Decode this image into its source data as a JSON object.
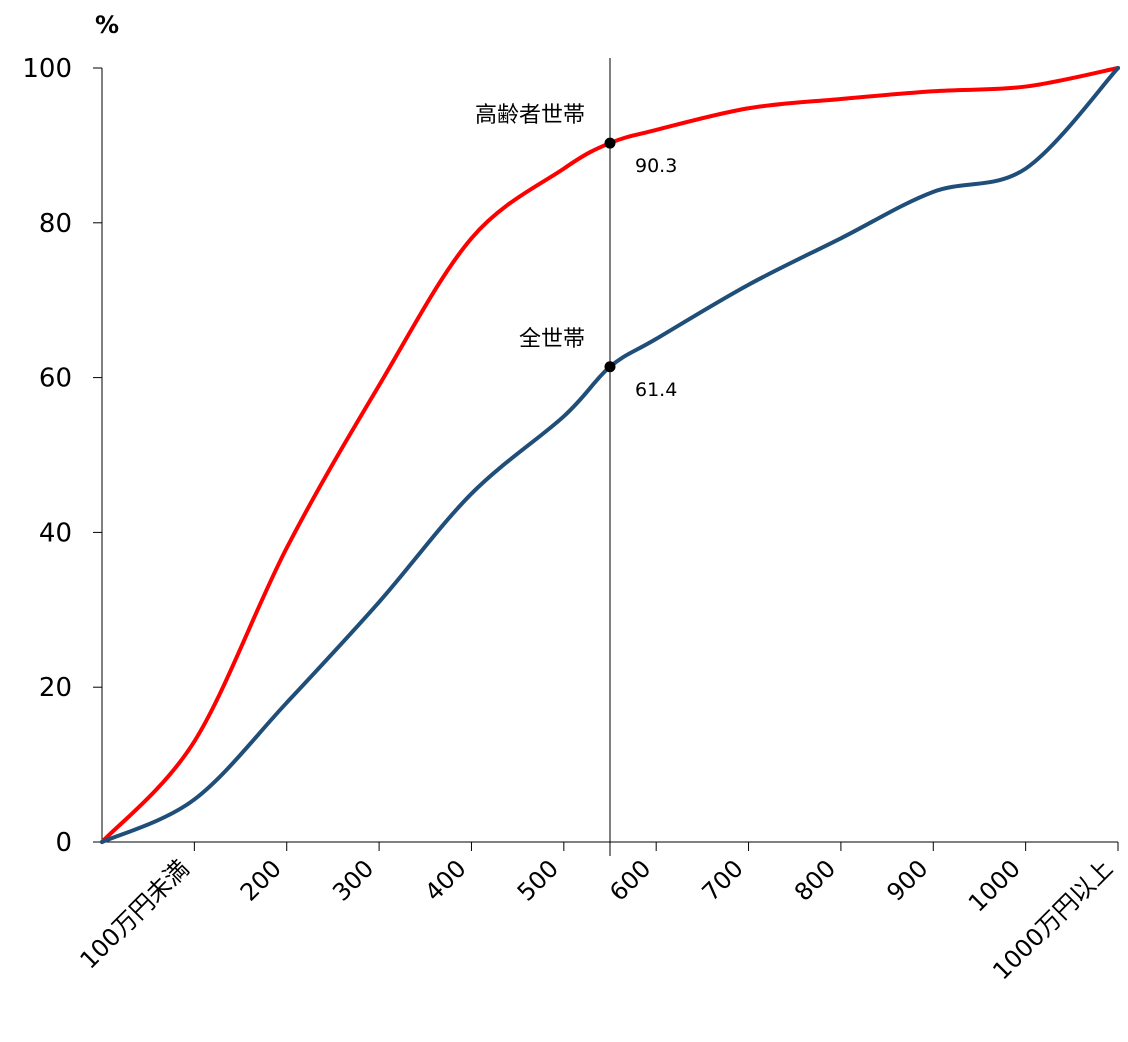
{
  "chart_data": {
    "type": "line",
    "title": "",
    "ylabel": "%",
    "xlabel": "",
    "ylim": [
      0,
      100
    ],
    "yticks": [
      0,
      20,
      40,
      60,
      80,
      100
    ],
    "x_tick_labels": [
      "100万円未満",
      "200",
      "300",
      "400",
      "500",
      "600",
      "700",
      "800",
      "900",
      "1000",
      "1000万円以上"
    ],
    "x": [
      0,
      100,
      200,
      300,
      400,
      500,
      550,
      600,
      700,
      800,
      900,
      1000,
      1100
    ],
    "series": [
      {
        "name": "高齢者世帯",
        "color": "#ff0000",
        "values": [
          0,
          13,
          38,
          59,
          78,
          87,
          90.3,
          92,
          94.8,
          96,
          97,
          97.6,
          100
        ]
      },
      {
        "name": "全世帯",
        "color": "#1f4e79",
        "values": [
          0,
          5.5,
          18,
          31,
          45,
          55,
          61.4,
          65,
          72,
          78,
          84,
          87,
          100
        ]
      }
    ],
    "marker": {
      "x": 550,
      "points": [
        {
          "series": "高齢者世帯",
          "value": 90.3,
          "label": "90.3"
        },
        {
          "series": "全世帯",
          "value": 61.4,
          "label": "61.4"
        }
      ]
    },
    "grid": false,
    "legend": "none"
  }
}
